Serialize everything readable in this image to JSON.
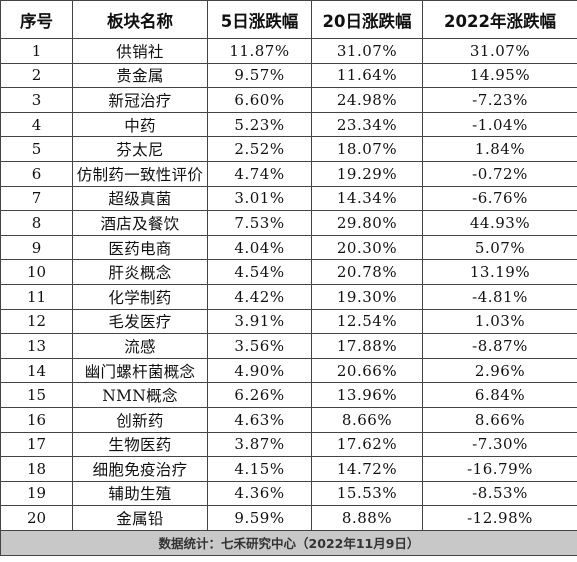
{
  "headers": [
    "序号",
    "板块名称",
    "5日涨跌幅",
    "20日涨跌幅",
    "2022年涨跌幅"
  ],
  "rows": [
    [
      "1",
      "供销社",
      "11.87%",
      "31.07%",
      "31.07%"
    ],
    [
      "2",
      "贵金属",
      "9.57%",
      "11.64%",
      "14.95%"
    ],
    [
      "3",
      "新冠治疗",
      "6.60%",
      "24.98%",
      "-7.23%"
    ],
    [
      "4",
      "中药",
      "5.23%",
      "23.34%",
      "-1.04%"
    ],
    [
      "5",
      "芬太尼",
      "2.52%",
      "18.07%",
      "1.84%"
    ],
    [
      "6",
      "仿制药一致性评价",
      "4.74%",
      "19.29%",
      "-0.72%"
    ],
    [
      "7",
      "超级真菌",
      "3.01%",
      "14.34%",
      "-6.76%"
    ],
    [
      "8",
      "酒店及餐饮",
      "7.53%",
      "29.80%",
      "44.93%"
    ],
    [
      "9",
      "医药电商",
      "4.04%",
      "20.30%",
      "5.07%"
    ],
    [
      "10",
      "肝炎概念",
      "4.54%",
      "20.78%",
      "13.19%"
    ],
    [
      "11",
      "化学制药",
      "4.42%",
      "19.30%",
      "-4.81%"
    ],
    [
      "12",
      "毛发医疗",
      "3.91%",
      "12.54%",
      "1.03%"
    ],
    [
      "13",
      "流感",
      "3.56%",
      "17.88%",
      "-8.87%"
    ],
    [
      "14",
      "幽门螺杆菌概念",
      "4.90%",
      "20.66%",
      "2.96%"
    ],
    [
      "15",
      "NMN概念",
      "6.26%",
      "13.96%",
      "6.84%"
    ],
    [
      "16",
      "创新药",
      "4.63%",
      "8.66%",
      "8.66%"
    ],
    [
      "17",
      "生物医药",
      "3.87%",
      "17.62%",
      "-7.30%"
    ],
    [
      "18",
      "细胞免疫治疗",
      "4.15%",
      "14.72%",
      "-16.79%"
    ],
    [
      "19",
      "辅助生殖",
      "4.36%",
      "15.53%",
      "-8.53%"
    ],
    [
      "20",
      "金属铅",
      "9.59%",
      "8.88%",
      "-12.98%"
    ]
  ],
  "footer": "数据统计：七禾研究中心（2022年11月9日）"
}
